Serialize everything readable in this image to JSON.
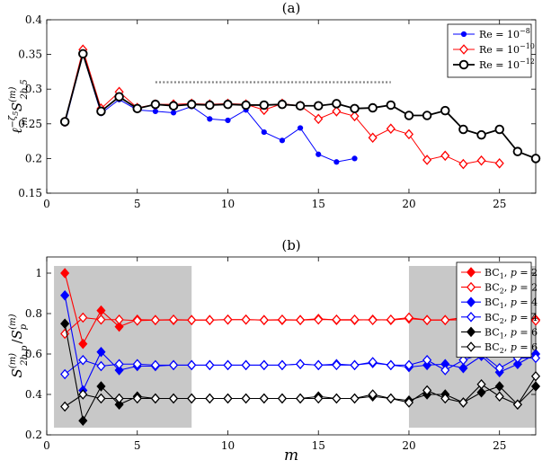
{
  "chart_data": [
    {
      "id": "a",
      "panel_label": "(a)",
      "type": "line",
      "xlabel": "",
      "ylabel": "ℓ_m^{-ζ₅} S_{2b,5}^{(m)}",
      "ylabel_parts": {
        "base": "ℓ",
        "sub": "m",
        "sup": "−ζ",
        "supsub": "5",
        "S": "S",
        "Ssub": "2b,5",
        "Ssup": "(m)"
      },
      "xlim": [
        0,
        27
      ],
      "ylim": [
        0.15,
        0.4
      ],
      "xticks": [
        0,
        5,
        10,
        15,
        20,
        25
      ],
      "yticks": [
        0.15,
        0.2,
        0.25,
        0.3,
        0.35,
        0.4
      ],
      "ytick_labels": [
        "0.15",
        "0.2",
        "0.25",
        "0.3",
        "0.35",
        "0.4"
      ],
      "grid": false,
      "legend_position": "top-right",
      "reference_line": {
        "x": [
          6,
          19
        ],
        "y": 0.31,
        "style": "dotted",
        "color": "#808080"
      },
      "series": [
        {
          "name": "Re = 10^-8",
          "legend_main": "Re = 10",
          "legend_exp": "−8",
          "color": "#0000ff",
          "marker": "dot",
          "linewidth": 1,
          "x": [
            1,
            2,
            3,
            4,
            5,
            6,
            7,
            8,
            9,
            10,
            11,
            12,
            13,
            14,
            15,
            16,
            17
          ],
          "y": [
            0.25,
            0.35,
            0.265,
            0.285,
            0.27,
            0.268,
            0.266,
            0.275,
            0.257,
            0.255,
            0.27,
            0.238,
            0.226,
            0.244,
            0.206,
            0.195,
            0.2
          ]
        },
        {
          "name": "Re = 10^-10",
          "legend_main": "Re = 10",
          "legend_exp": "−10",
          "color": "#ff0000",
          "marker": "diamond",
          "linewidth": 1,
          "x": [
            1,
            2,
            3,
            4,
            5,
            6,
            7,
            8,
            9,
            10,
            11,
            12,
            13,
            14,
            15,
            16,
            17,
            18,
            19,
            20,
            21,
            22,
            23,
            24,
            25
          ],
          "y": [
            0.253,
            0.357,
            0.272,
            0.296,
            0.273,
            0.278,
            0.278,
            0.279,
            0.278,
            0.279,
            0.278,
            0.27,
            0.279,
            0.276,
            0.257,
            0.268,
            0.261,
            0.23,
            0.243,
            0.235,
            0.198,
            0.204,
            0.192,
            0.197,
            0.193
          ]
        },
        {
          "name": "Re = 10^-12",
          "legend_main": "Re = 10",
          "legend_exp": "−12",
          "color": "#000000",
          "marker": "circle",
          "linewidth": 1.8,
          "x": [
            1,
            2,
            3,
            4,
            5,
            6,
            7,
            8,
            9,
            10,
            11,
            12,
            13,
            14,
            15,
            16,
            17,
            18,
            19,
            20,
            21,
            22,
            23,
            24,
            25,
            26,
            27
          ],
          "y": [
            0.253,
            0.351,
            0.268,
            0.289,
            0.272,
            0.278,
            0.276,
            0.278,
            0.277,
            0.278,
            0.277,
            0.277,
            0.278,
            0.276,
            0.276,
            0.279,
            0.272,
            0.273,
            0.277,
            0.262,
            0.262,
            0.269,
            0.242,
            0.234,
            0.242,
            0.21,
            0.2
          ]
        }
      ]
    },
    {
      "id": "b",
      "panel_label": "(b)",
      "type": "line",
      "xlabel": "m",
      "ylabel": "S_{2b,p}^{(m)} / S_p^{(m)}",
      "ylabel_parts": {
        "S": "S",
        "num_sub": "2b,p",
        "num_sup": "(m)",
        "slash": "/",
        "den_sub": "p",
        "den_sup": "(m)"
      },
      "xlim": [
        0,
        27
      ],
      "ylim": [
        0.2,
        1.08
      ],
      "xticks": [
        0,
        5,
        10,
        15,
        20,
        25
      ],
      "yticks": [
        0.2,
        0.4,
        0.6,
        0.8,
        1.0
      ],
      "ytick_labels": [
        "0.2",
        "0.4",
        "0.6",
        "0.8",
        "1"
      ],
      "grid": false,
      "legend_position": "top-right",
      "shaded_regions": [
        {
          "x": [
            0.4,
            8
          ],
          "color": "#c8c8c8"
        },
        {
          "x": [
            20,
            27
          ],
          "color": "#c8c8c8"
        }
      ],
      "series": [
        {
          "name": "BC1, p = 2",
          "legend_bc": "BC",
          "legend_sub": "1",
          "legend_p": "2",
          "color": "#ff0000",
          "marker": "diamond-filled",
          "x": [
            1,
            2,
            3,
            4,
            5,
            6,
            7,
            8,
            9,
            10,
            11,
            12,
            13,
            14,
            15,
            16,
            17,
            18,
            19,
            20,
            21,
            22,
            23,
            24,
            25,
            26,
            27
          ],
          "y": [
            1.0,
            0.65,
            0.815,
            0.735,
            0.77,
            0.768,
            0.768,
            0.768,
            0.768,
            0.77,
            0.77,
            0.768,
            0.768,
            0.768,
            0.774,
            0.768,
            0.768,
            0.77,
            0.768,
            0.775,
            0.768,
            0.768,
            0.77,
            0.768,
            0.77,
            0.77,
            0.77
          ]
        },
        {
          "name": "BC2, p = 2",
          "legend_bc": "BC",
          "legend_sub": "2",
          "legend_p": "2",
          "color": "#ff0000",
          "marker": "diamond",
          "x": [
            1,
            2,
            3,
            4,
            5,
            6,
            7,
            8,
            9,
            10,
            11,
            12,
            13,
            14,
            15,
            16,
            17,
            18,
            19,
            20,
            21,
            22,
            23,
            24,
            25,
            26,
            27
          ],
          "y": [
            0.7,
            0.78,
            0.77,
            0.77,
            0.765,
            0.768,
            0.77,
            0.768,
            0.768,
            0.77,
            0.77,
            0.768,
            0.77,
            0.768,
            0.77,
            0.77,
            0.77,
            0.768,
            0.77,
            0.78,
            0.768,
            0.768,
            0.78,
            0.765,
            0.77,
            0.765,
            0.765
          ]
        },
        {
          "name": "BC1, p = 4",
          "legend_bc": "BC",
          "legend_sub": "1",
          "legend_p": "4",
          "color": "#0000ff",
          "marker": "diamond-filled",
          "x": [
            1,
            2,
            3,
            4,
            5,
            6,
            7,
            8,
            9,
            10,
            11,
            12,
            13,
            14,
            15,
            16,
            17,
            18,
            19,
            20,
            21,
            22,
            23,
            24,
            25,
            26,
            27
          ],
          "y": [
            0.89,
            0.42,
            0.61,
            0.52,
            0.54,
            0.54,
            0.545,
            0.545,
            0.545,
            0.545,
            0.545,
            0.545,
            0.545,
            0.55,
            0.545,
            0.55,
            0.545,
            0.555,
            0.545,
            0.535,
            0.545,
            0.55,
            0.53,
            0.59,
            0.51,
            0.55,
            0.6
          ]
        },
        {
          "name": "BC2, p = 4",
          "legend_bc": "BC",
          "legend_sub": "2",
          "legend_p": "4",
          "color": "#0000ff",
          "marker": "diamond",
          "x": [
            1,
            2,
            3,
            4,
            5,
            6,
            7,
            8,
            9,
            10,
            11,
            12,
            13,
            14,
            15,
            16,
            17,
            18,
            19,
            20,
            21,
            22,
            23,
            24,
            25,
            26,
            27
          ],
          "y": [
            0.5,
            0.57,
            0.54,
            0.55,
            0.55,
            0.545,
            0.545,
            0.545,
            0.545,
            0.545,
            0.545,
            0.545,
            0.545,
            0.55,
            0.545,
            0.545,
            0.545,
            0.56,
            0.545,
            0.545,
            0.57,
            0.52,
            0.57,
            0.6,
            0.53,
            0.58,
            0.58
          ]
        },
        {
          "name": "BC1, p = 6",
          "legend_bc": "BC",
          "legend_sub": "1",
          "legend_p": "6",
          "color": "#000000",
          "marker": "diamond-filled",
          "x": [
            1,
            2,
            3,
            4,
            5,
            6,
            7,
            8,
            9,
            10,
            11,
            12,
            13,
            14,
            15,
            16,
            17,
            18,
            19,
            20,
            21,
            22,
            23,
            24,
            25,
            26,
            27
          ],
          "y": [
            0.75,
            0.27,
            0.44,
            0.35,
            0.39,
            0.38,
            0.38,
            0.38,
            0.38,
            0.38,
            0.38,
            0.38,
            0.38,
            0.38,
            0.39,
            0.38,
            0.38,
            0.39,
            0.38,
            0.37,
            0.4,
            0.4,
            0.36,
            0.41,
            0.44,
            0.35,
            0.44
          ]
        },
        {
          "name": "BC2, p = 6",
          "legend_bc": "BC",
          "legend_sub": "2",
          "legend_p": "6",
          "color": "#000000",
          "marker": "diamond",
          "x": [
            1,
            2,
            3,
            4,
            5,
            6,
            7,
            8,
            9,
            10,
            11,
            12,
            13,
            14,
            15,
            16,
            17,
            18,
            19,
            20,
            21,
            22,
            23,
            24,
            25,
            26,
            27
          ],
          "y": [
            0.34,
            0.4,
            0.38,
            0.38,
            0.38,
            0.38,
            0.38,
            0.38,
            0.38,
            0.38,
            0.38,
            0.38,
            0.38,
            0.38,
            0.38,
            0.38,
            0.38,
            0.4,
            0.38,
            0.36,
            0.42,
            0.38,
            0.36,
            0.45,
            0.39,
            0.35,
            0.49
          ]
        }
      ]
    }
  ]
}
